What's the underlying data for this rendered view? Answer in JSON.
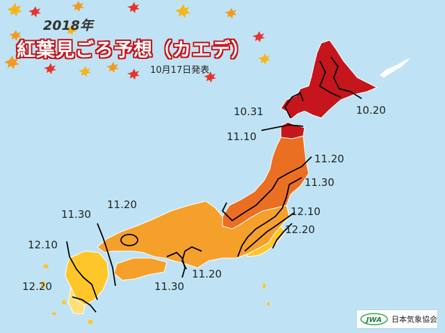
{
  "header": {
    "year": "2018年",
    "title": "紅葉見ごろ予想（カエデ）",
    "issued": "10月17日発表"
  },
  "legend_colors": {
    "red": "#c4161c",
    "orange_dark": "#ea6f22",
    "orange": "#f5a02a",
    "yellow": "#ffc629",
    "light_yellow": "#ffe07a"
  },
  "isolines": [
    {
      "name": "10-31",
      "label": "10.31"
    },
    {
      "name": "10-20",
      "label": "10.20"
    },
    {
      "name": "11-10",
      "label": "11.10"
    },
    {
      "name": "11-20-north",
      "label": "11.20"
    },
    {
      "name": "11-30-north",
      "label": "11.30"
    },
    {
      "name": "12-10-east",
      "label": "12.10"
    },
    {
      "name": "12-20-east",
      "label": "12.20"
    },
    {
      "name": "11-20-west",
      "label": "11.20"
    },
    {
      "name": "11-30-west",
      "label": "11.30"
    },
    {
      "name": "12-10-west",
      "label": "12.10"
    },
    {
      "name": "12-20-west",
      "label": "12.20"
    },
    {
      "name": "11-20-kinki",
      "label": "11.20"
    },
    {
      "name": "11-30-kinki",
      "label": "11.30"
    }
  ],
  "brand": {
    "logo_text": "JWA",
    "name": "日本気象協会"
  }
}
